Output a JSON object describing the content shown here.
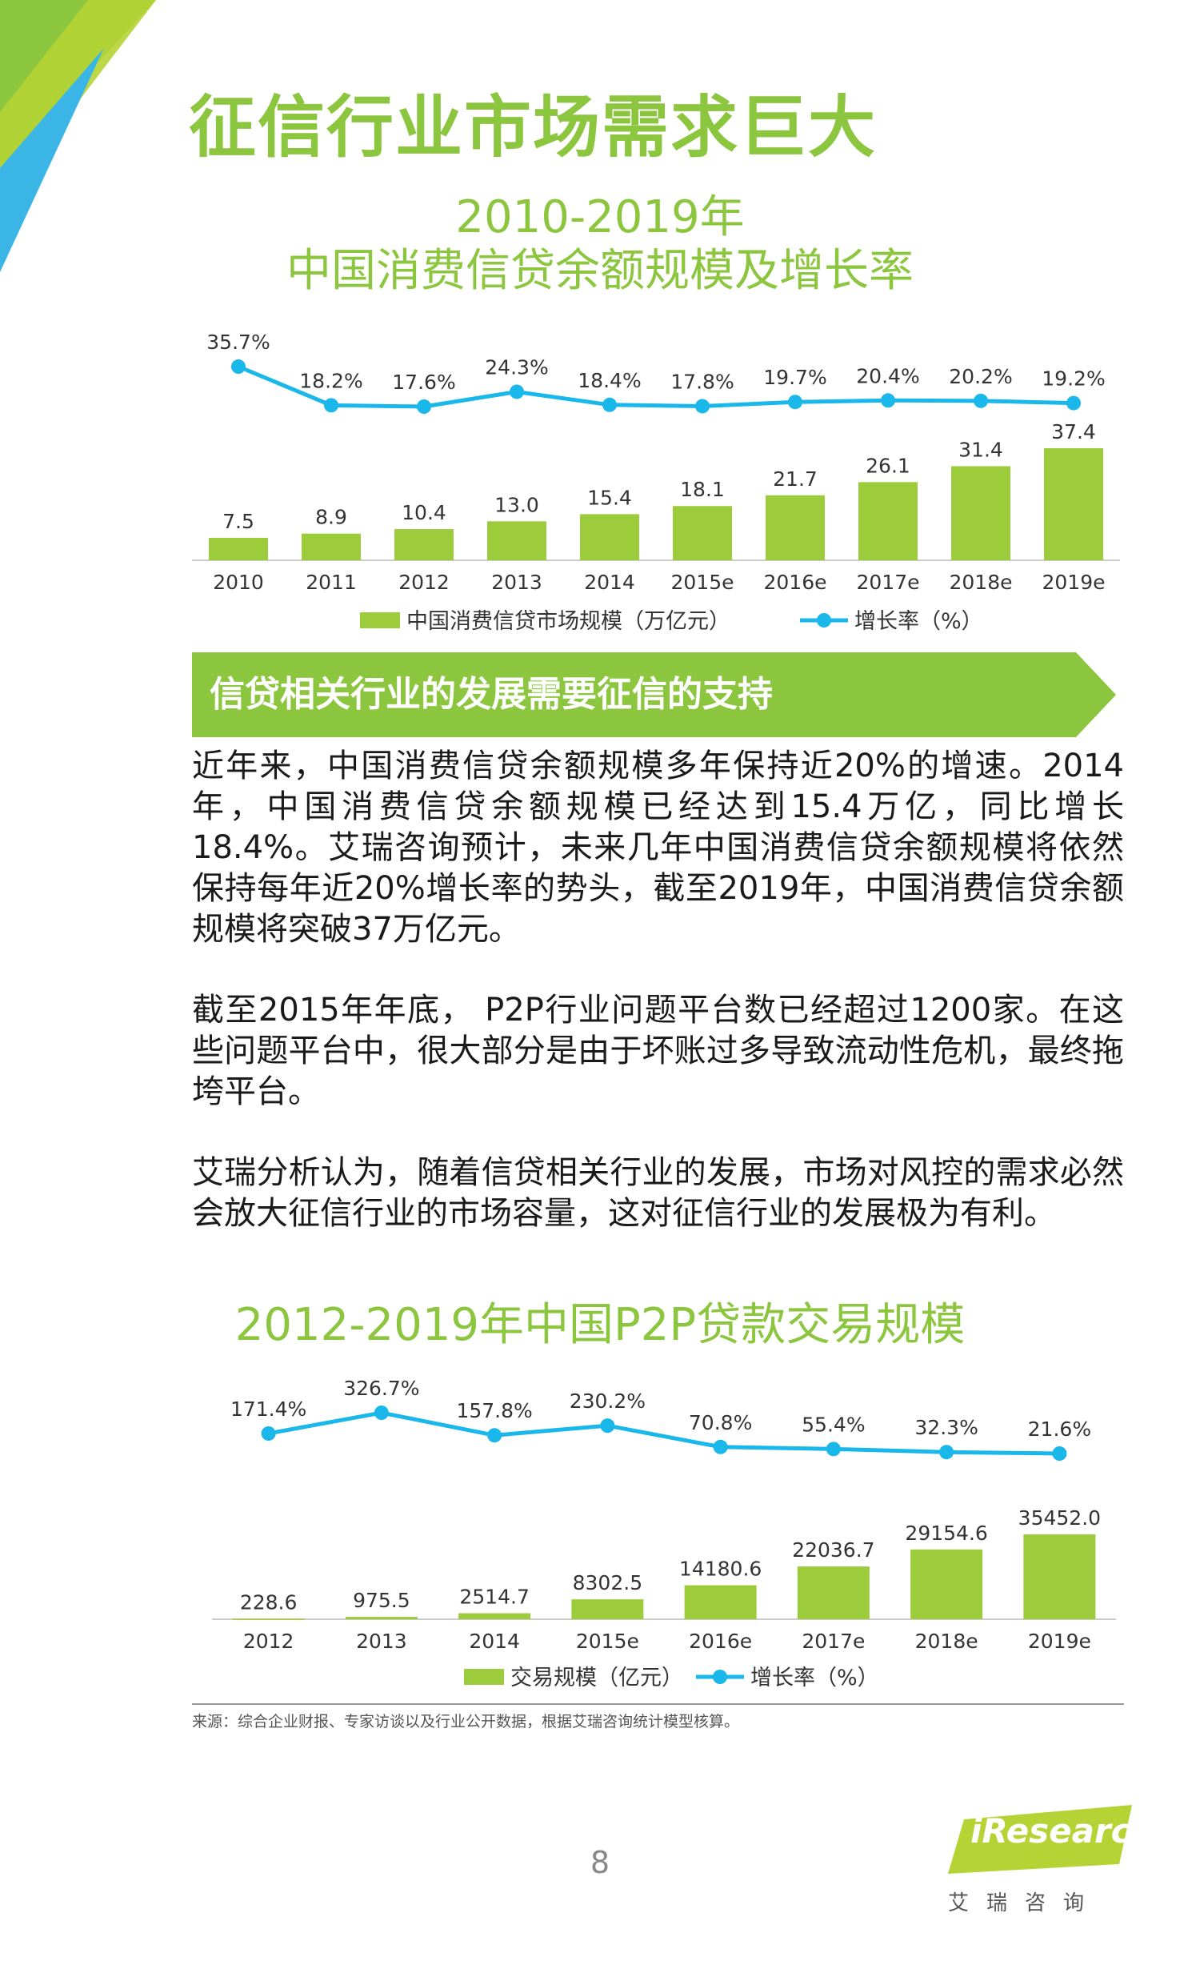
{
  "page": {
    "title": "征信行业市场需求巨大",
    "section_banner": "信贷相关行业的发展需要征信的支持",
    "paragraphs": [
      "近年来，中国消费信贷余额规模多年保持近20%的增速。2014年，中国消费信贷余额规模已经达到15.4万亿，同比增长18.4%。艾瑞咨询预计，未来几年中国消费信贷余额规模将依然保持每年近20%增长率的势头，截至2019年，中国消费信贷余额规模将突破37万亿元。",
      "截至2015年年底， P2P行业问题平台数已经超过1200家。在这些问题平台中，很大部分是由于坏账过多导致流动性危机，最终拖垮平台。",
      "艾瑞分析认为，随着信贷相关行业的发展，市场对风控的需求必然会放大征信行业的市场容量，这对征信行业的发展极为有利。"
    ],
    "source": "来源：综合企业财报、专家访谈以及行业公开数据，根据艾瑞咨询统计模型核算。",
    "page_number": "8",
    "logo": {
      "brand": "iResearch",
      "cn": "艾瑞咨询"
    },
    "colors": {
      "accent_green": "#8cc63f",
      "line_blue": "#1ab7ea",
      "bar_green": "#9ccb3b"
    }
  },
  "chart_data": [
    {
      "type": "bar",
      "title": "2010-2019年",
      "subtitle": "中国消费信贷余额规模及增长率",
      "categories": [
        "2010",
        "2011",
        "2012",
        "2013",
        "2014",
        "2015e",
        "2016e",
        "2017e",
        "2018e",
        "2019e"
      ],
      "series": [
        {
          "name": "中国消费信贷市场规模（万亿元）",
          "type": "bar",
          "values": [
            7.5,
            8.9,
            10.4,
            13.0,
            15.4,
            18.1,
            21.7,
            26.1,
            31.4,
            37.4
          ],
          "labels": [
            "7.5",
            "8.9",
            "10.4",
            "13.0",
            "15.4",
            "18.1",
            "21.7",
            "26.1",
            "31.4",
            "37.4"
          ]
        },
        {
          "name": "增长率（%）",
          "type": "line",
          "values": [
            35.7,
            18.2,
            17.6,
            24.3,
            18.4,
            17.8,
            19.7,
            20.4,
            20.2,
            19.2
          ],
          "labels": [
            "35.7%",
            "18.2%",
            "17.6%",
            "24.3%",
            "18.4%",
            "17.8%",
            "19.7%",
            "20.4%",
            "20.2%",
            "19.2%"
          ]
        }
      ],
      "legend": "bottom",
      "grid": false
    },
    {
      "type": "bar",
      "title": "2012-2019年中国P2P贷款交易规模",
      "categories": [
        "2012",
        "2013",
        "2014",
        "2015e",
        "2016e",
        "2017e",
        "2018e",
        "2019e"
      ],
      "series": [
        {
          "name": "交易规模（亿元）",
          "type": "bar",
          "values": [
            228.6,
            975.5,
            2514.7,
            8302.5,
            14180.6,
            22036.7,
            29154.6,
            35452.0
          ],
          "labels": [
            "228.6",
            "975.5",
            "2514.7",
            "8302.5",
            "14180.6",
            "22036.7",
            "29154.6",
            "35452.0"
          ]
        },
        {
          "name": "增长率（%）",
          "type": "line",
          "values": [
            171.4,
            326.7,
            157.8,
            230.2,
            70.8,
            55.4,
            32.3,
            21.6
          ],
          "labels": [
            "171.4%",
            "326.7%",
            "157.8%",
            "230.2%",
            "70.8%",
            "55.4%",
            "32.3%",
            "21.6%"
          ]
        }
      ],
      "legend": "bottom",
      "grid": false
    }
  ]
}
